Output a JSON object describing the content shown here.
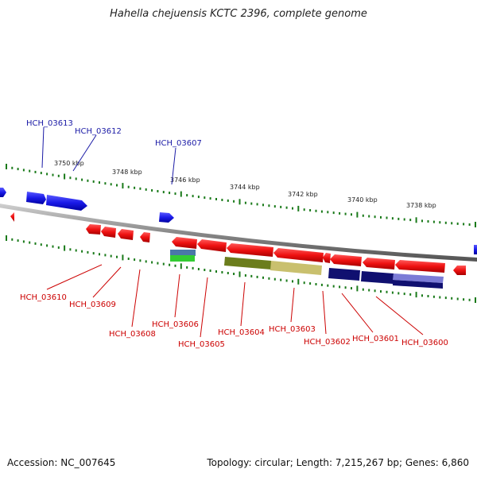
{
  "title": "Hahella chejuensis KCTC 2396, complete genome",
  "accession": "Accession: NC_007645",
  "stats": "Topology: circular; Length: 7,215,267 bp; Genes: 6,860",
  "colors": {
    "forward": "#1f1fe6",
    "reverse": "#e80e0e",
    "backbone": "#888888",
    "tick": "#1a7a1a",
    "forward_label": "#1a1aa6",
    "reverse_label": "#cc0000"
  },
  "scale_ticks": [
    "3750 kbp",
    "3748 kbp",
    "3746 kbp",
    "3744 kbp",
    "3742 kbp",
    "3740 kbp",
    "3738 kbp"
  ],
  "forward_gene_labels": [
    "HCH_03613",
    "HCH_03612",
    "HCH_03607"
  ],
  "reverse_gene_labels": [
    "HCH_03610",
    "HCH_03609",
    "HCH_03608",
    "HCH_03606",
    "HCH_03605",
    "HCH_03604",
    "HCH_03603",
    "HCH_03602",
    "HCH_03601",
    "HCH_03600"
  ]
}
